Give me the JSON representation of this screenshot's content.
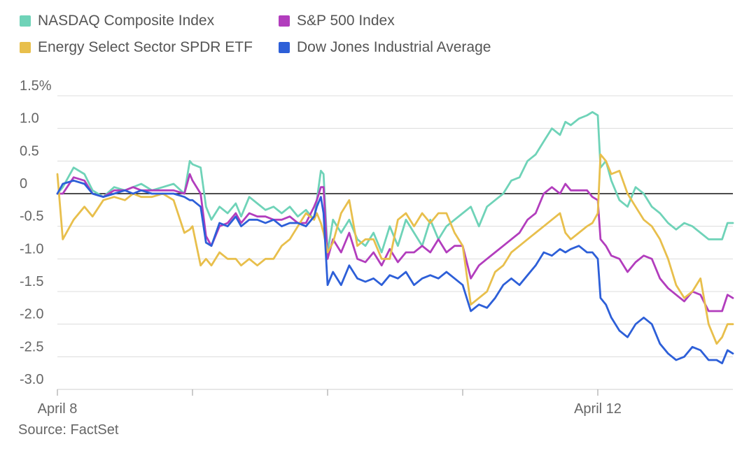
{
  "source": "Source: FactSet",
  "chart_data": {
    "type": "line",
    "title": "",
    "xlabel": "",
    "ylabel": "",
    "y_tick_labels": [
      "1.5%",
      "1.0",
      "0.5",
      "0",
      "-0.5",
      "-1.0",
      "-1.5",
      "-2.0",
      "-2.5",
      "-3.0"
    ],
    "y_tick_values": [
      1.5,
      1.0,
      0.5,
      0,
      -0.5,
      -1.0,
      -1.5,
      -2.0,
      -2.5,
      -3.0
    ],
    "ylim": [
      -3.2,
      1.5
    ],
    "xlim": [
      0,
      5
    ],
    "x_tick_values": [
      0,
      1,
      2,
      3,
      4
    ],
    "x_tick_labels": [
      "April 8",
      "",
      "",
      "",
      "April 12"
    ],
    "grid": true,
    "legend_position": "top-left",
    "series": [
      {
        "name": "NASDAQ Composite Index",
        "color": "#6fd3b8",
        "x": [
          0,
          0.04,
          0.12,
          0.2,
          0.26,
          0.34,
          0.42,
          0.5,
          0.56,
          0.62,
          0.7,
          0.78,
          0.86,
          0.94,
          0.98,
          1.0,
          1.06,
          1.1,
          1.14,
          1.2,
          1.26,
          1.32,
          1.36,
          1.42,
          1.48,
          1.54,
          1.6,
          1.66,
          1.72,
          1.78,
          1.84,
          1.9,
          1.92,
          1.95,
          1.97,
          2.0,
          2.04,
          2.1,
          2.16,
          2.22,
          2.28,
          2.34,
          2.4,
          2.46,
          2.52,
          2.58,
          2.64,
          2.7,
          2.76,
          2.82,
          2.88,
          2.94,
          3.0,
          3.06,
          3.12,
          3.18,
          3.24,
          3.3,
          3.36,
          3.42,
          3.48,
          3.54,
          3.6,
          3.66,
          3.72,
          3.76,
          3.8,
          3.86,
          3.92,
          3.96,
          4.0,
          4.02,
          4.06,
          4.1,
          4.16,
          4.22,
          4.28,
          4.34,
          4.4,
          4.46,
          4.52,
          4.58,
          4.64,
          4.7,
          4.76,
          4.82,
          4.88,
          4.92,
          4.96,
          5.0
        ],
        "values": [
          0,
          0.1,
          0.4,
          0.3,
          0.05,
          -0.05,
          0.1,
          0.05,
          0.1,
          0.15,
          0.05,
          0.1,
          0.15,
          0.0,
          0.5,
          0.45,
          0.4,
          -0.2,
          -0.4,
          -0.2,
          -0.3,
          -0.15,
          -0.35,
          -0.05,
          -0.15,
          -0.25,
          -0.2,
          -0.3,
          -0.2,
          -0.35,
          -0.25,
          -0.4,
          -0.1,
          0.35,
          0.3,
          -0.9,
          -0.4,
          -0.6,
          -0.4,
          -0.7,
          -0.8,
          -0.6,
          -0.9,
          -0.5,
          -0.8,
          -0.4,
          -0.6,
          -0.8,
          -0.4,
          -0.7,
          -0.5,
          -0.4,
          -0.3,
          -0.2,
          -0.5,
          -0.2,
          -0.1,
          0.0,
          0.2,
          0.25,
          0.5,
          0.6,
          0.8,
          1.0,
          0.9,
          1.1,
          1.05,
          1.15,
          1.2,
          1.25,
          1.2,
          0.4,
          0.5,
          0.2,
          -0.1,
          -0.2,
          0.1,
          0.0,
          -0.2,
          -0.3,
          -0.45,
          -0.55,
          -0.45,
          -0.5,
          -0.6,
          -0.7,
          -0.7,
          -0.7,
          -0.45,
          -0.45
        ]
      },
      {
        "name": "S&P 500 Index",
        "color": "#b23dbd",
        "x": [
          0,
          0.04,
          0.12,
          0.2,
          0.26,
          0.34,
          0.42,
          0.5,
          0.56,
          0.62,
          0.7,
          0.78,
          0.86,
          0.94,
          0.98,
          1.0,
          1.06,
          1.1,
          1.14,
          1.2,
          1.26,
          1.32,
          1.36,
          1.42,
          1.48,
          1.54,
          1.6,
          1.66,
          1.72,
          1.78,
          1.84,
          1.9,
          1.92,
          1.95,
          1.97,
          2.0,
          2.04,
          2.1,
          2.16,
          2.22,
          2.28,
          2.34,
          2.4,
          2.46,
          2.52,
          2.58,
          2.64,
          2.7,
          2.76,
          2.82,
          2.88,
          2.94,
          3.0,
          3.06,
          3.12,
          3.18,
          3.24,
          3.3,
          3.36,
          3.42,
          3.48,
          3.54,
          3.6,
          3.66,
          3.72,
          3.76,
          3.8,
          3.86,
          3.92,
          3.96,
          4.0,
          4.02,
          4.06,
          4.1,
          4.16,
          4.22,
          4.28,
          4.34,
          4.4,
          4.46,
          4.52,
          4.58,
          4.64,
          4.7,
          4.76,
          4.82,
          4.88,
          4.92,
          4.96,
          5.0
        ],
        "values": [
          0,
          0.0,
          0.25,
          0.2,
          0.0,
          -0.05,
          0.05,
          0.05,
          0.1,
          0.05,
          0.05,
          0.05,
          0.05,
          0.0,
          0.3,
          0.2,
          0.0,
          -0.65,
          -0.8,
          -0.5,
          -0.45,
          -0.3,
          -0.45,
          -0.3,
          -0.35,
          -0.35,
          -0.4,
          -0.4,
          -0.35,
          -0.45,
          -0.45,
          -0.2,
          -0.1,
          0.1,
          0.1,
          -1.0,
          -0.7,
          -0.9,
          -0.6,
          -1.0,
          -1.05,
          -0.9,
          -1.1,
          -0.85,
          -1.05,
          -0.9,
          -0.9,
          -0.8,
          -0.9,
          -0.7,
          -0.9,
          -0.8,
          -0.8,
          -1.3,
          -1.1,
          -1.0,
          -0.9,
          -0.8,
          -0.7,
          -0.6,
          -0.4,
          -0.3,
          0.0,
          0.1,
          0.0,
          0.15,
          0.05,
          0.05,
          0.05,
          -0.05,
          -0.1,
          -0.7,
          -0.8,
          -0.95,
          -1.0,
          -1.2,
          -1.05,
          -0.95,
          -1.0,
          -1.3,
          -1.45,
          -1.55,
          -1.65,
          -1.5,
          -1.55,
          -1.8,
          -1.8,
          -1.8,
          -1.55,
          -1.6
        ]
      },
      {
        "name": "Energy Select Sector SPDR ETF",
        "color": "#e8bf4c",
        "x": [
          0,
          0.04,
          0.12,
          0.2,
          0.26,
          0.34,
          0.42,
          0.5,
          0.56,
          0.62,
          0.7,
          0.78,
          0.86,
          0.94,
          0.98,
          1.0,
          1.06,
          1.1,
          1.14,
          1.2,
          1.26,
          1.32,
          1.36,
          1.42,
          1.48,
          1.54,
          1.6,
          1.66,
          1.72,
          1.78,
          1.84,
          1.9,
          1.92,
          1.95,
          1.97,
          2.0,
          2.04,
          2.1,
          2.16,
          2.22,
          2.28,
          2.34,
          2.4,
          2.46,
          2.52,
          2.58,
          2.64,
          2.7,
          2.76,
          2.82,
          2.88,
          2.94,
          3.0,
          3.06,
          3.12,
          3.18,
          3.24,
          3.3,
          3.36,
          3.42,
          3.48,
          3.54,
          3.6,
          3.66,
          3.72,
          3.76,
          3.8,
          3.86,
          3.92,
          3.96,
          4.0,
          4.02,
          4.06,
          4.1,
          4.16,
          4.22,
          4.28,
          4.34,
          4.4,
          4.46,
          4.52,
          4.58,
          4.64,
          4.7,
          4.76,
          4.82,
          4.88,
          4.92,
          4.96,
          5.0
        ],
        "values": [
          0.3,
          -0.7,
          -0.4,
          -0.2,
          -0.35,
          -0.1,
          -0.05,
          -0.1,
          0.0,
          -0.05,
          -0.05,
          0.0,
          -0.1,
          -0.6,
          -0.55,
          -0.5,
          -1.1,
          -1.0,
          -1.1,
          -0.9,
          -1.0,
          -1.0,
          -1.1,
          -1.0,
          -1.1,
          -1.0,
          -1.0,
          -0.8,
          -0.7,
          -0.5,
          -0.3,
          -0.4,
          -0.3,
          -0.45,
          -0.6,
          -0.9,
          -0.75,
          -0.3,
          -0.1,
          -0.8,
          -0.7,
          -0.7,
          -1.0,
          -1.0,
          -0.4,
          -0.3,
          -0.5,
          -0.3,
          -0.45,
          -0.3,
          -0.3,
          -0.6,
          -0.8,
          -1.7,
          -1.6,
          -1.5,
          -1.2,
          -1.1,
          -0.9,
          -0.8,
          -0.7,
          -0.6,
          -0.5,
          -0.4,
          -0.3,
          -0.6,
          -0.7,
          -0.6,
          -0.5,
          -0.45,
          -0.3,
          0.6,
          0.5,
          0.3,
          0.35,
          0.0,
          -0.2,
          -0.4,
          -0.5,
          -0.7,
          -1.0,
          -1.4,
          -1.6,
          -1.5,
          -1.3,
          -2.0,
          -2.3,
          -2.2,
          -2.0,
          -2.0
        ]
      },
      {
        "name": "Dow Jones Industrial Average",
        "color": "#2d5fd8",
        "x": [
          0,
          0.04,
          0.12,
          0.2,
          0.26,
          0.34,
          0.42,
          0.5,
          0.56,
          0.62,
          0.7,
          0.78,
          0.86,
          0.94,
          0.98,
          1.0,
          1.06,
          1.1,
          1.14,
          1.2,
          1.26,
          1.32,
          1.36,
          1.42,
          1.48,
          1.54,
          1.6,
          1.66,
          1.72,
          1.78,
          1.84,
          1.9,
          1.92,
          1.95,
          1.97,
          2.0,
          2.04,
          2.1,
          2.16,
          2.22,
          2.28,
          2.34,
          2.4,
          2.46,
          2.52,
          2.58,
          2.64,
          2.7,
          2.76,
          2.82,
          2.88,
          2.94,
          3.0,
          3.06,
          3.12,
          3.18,
          3.24,
          3.3,
          3.36,
          3.42,
          3.48,
          3.54,
          3.6,
          3.66,
          3.72,
          3.76,
          3.8,
          3.86,
          3.92,
          3.96,
          4.0,
          4.02,
          4.06,
          4.1,
          4.16,
          4.22,
          4.28,
          4.34,
          4.4,
          4.46,
          4.52,
          4.58,
          4.64,
          4.7,
          4.76,
          4.82,
          4.88,
          4.92,
          4.96,
          5.0
        ],
        "values": [
          0,
          0.15,
          0.2,
          0.15,
          0.0,
          -0.05,
          0.0,
          0.05,
          0.0,
          0.05,
          0.0,
          0.0,
          0.0,
          -0.05,
          -0.1,
          -0.1,
          -0.2,
          -0.75,
          -0.8,
          -0.45,
          -0.5,
          -0.35,
          -0.5,
          -0.4,
          -0.4,
          -0.45,
          -0.4,
          -0.5,
          -0.45,
          -0.45,
          -0.5,
          -0.35,
          -0.2,
          -0.05,
          -0.3,
          -1.4,
          -1.2,
          -1.4,
          -1.1,
          -1.3,
          -1.35,
          -1.3,
          -1.4,
          -1.25,
          -1.3,
          -1.2,
          -1.4,
          -1.3,
          -1.25,
          -1.3,
          -1.2,
          -1.3,
          -1.4,
          -1.8,
          -1.7,
          -1.75,
          -1.6,
          -1.4,
          -1.3,
          -1.4,
          -1.25,
          -1.1,
          -0.9,
          -0.95,
          -0.85,
          -0.9,
          -0.85,
          -0.8,
          -0.9,
          -0.9,
          -1.0,
          -1.6,
          -1.7,
          -1.9,
          -2.1,
          -2.2,
          -2.0,
          -1.9,
          -2.0,
          -2.3,
          -2.45,
          -2.55,
          -2.5,
          -2.35,
          -2.4,
          -2.55,
          -2.55,
          -2.6,
          -2.4,
          -2.45
        ]
      }
    ]
  }
}
